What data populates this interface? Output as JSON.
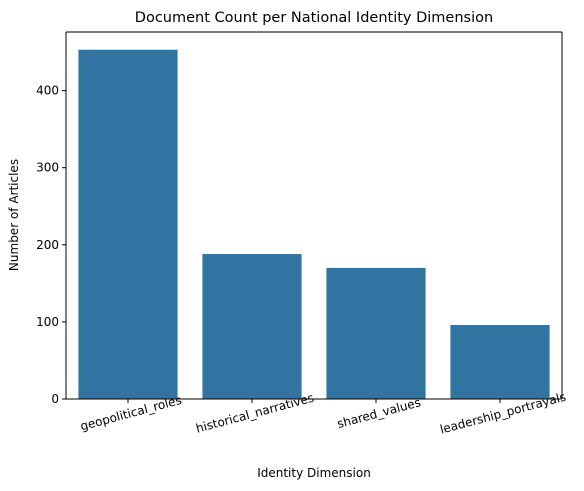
{
  "chart_data": {
    "type": "bar",
    "title": "Document Count per National Identity Dimension",
    "xlabel": "Identity Dimension",
    "ylabel": "Number of Articles",
    "categories": [
      "geopolitical_roles",
      "historical_narratives",
      "shared_values",
      "leadership_portrayals"
    ],
    "values": [
      453,
      188,
      170,
      96
    ],
    "ylim": [
      0,
      476
    ],
    "yticks": [
      0,
      100,
      200,
      300,
      400
    ],
    "grid": false,
    "bar_color": "#3274a1",
    "xtick_rotation_deg": 15
  }
}
